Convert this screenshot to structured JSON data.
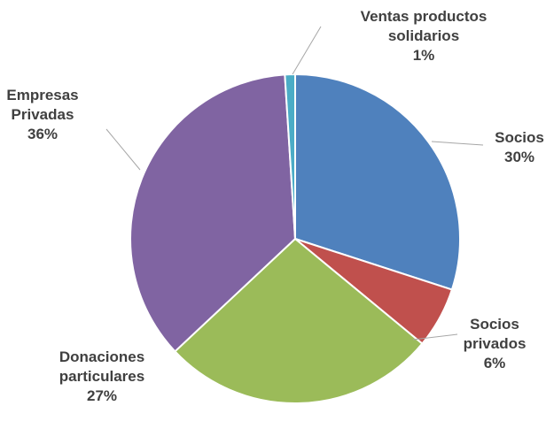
{
  "chart_data": {
    "type": "pie",
    "categories": [
      "Socios",
      "Socios privados",
      "Donaciones particulares",
      "Empresas Privadas",
      "Ventas productos solidarios"
    ],
    "values": [
      30,
      6,
      27,
      36,
      1
    ],
    "value_labels": [
      "30%",
      "6%",
      "27%",
      "36%",
      "1%"
    ],
    "colors": [
      "#4f81bd",
      "#c0504d",
      "#9bbb59",
      "#8064a2",
      "#4bacc6"
    ]
  }
}
